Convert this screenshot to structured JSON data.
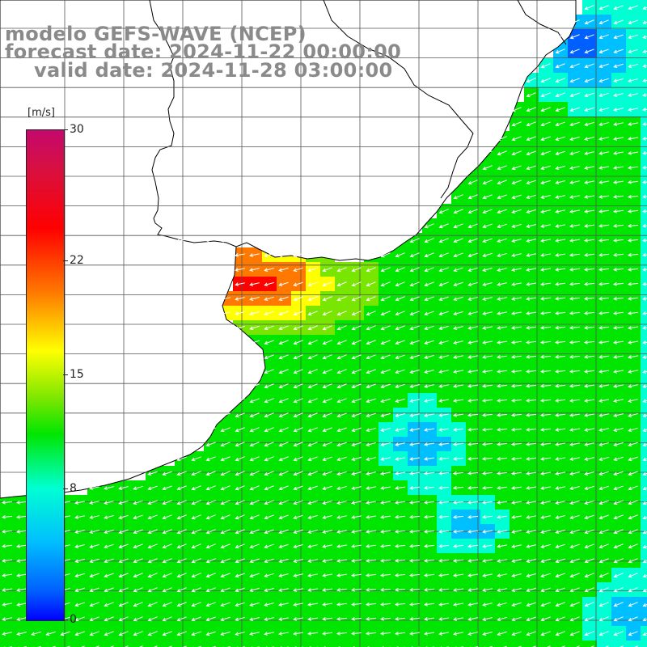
{
  "title": {
    "model": "modelo GEFS-WAVE (NCEP)",
    "forecast": "forecast date: 2024-11-22 00:00:00",
    "valid": "valid date: 2024-11-28 03:00:00"
  },
  "colorbar": {
    "unit": "[m/s]",
    "ticks": [
      {
        "value": 30,
        "label": "30"
      },
      {
        "value": 22,
        "label": "22"
      },
      {
        "value": 15,
        "label": "15"
      },
      {
        "value": 8,
        "label": "8"
      },
      {
        "value": 0,
        "label": "0"
      }
    ],
    "range": [
      0,
      30
    ]
  },
  "map": {
    "variable": "wind speed and direction",
    "land_color": "#ffffff",
    "coastline_color": "#000000",
    "grid_color": "#555555",
    "arrow_color": "#ffffff",
    "palette": [
      "#0000ff",
      "#0060ff",
      "#00bfff",
      "#00ffd2",
      "#00e600",
      "#78e600",
      "#ffff00",
      "#ff7800",
      "#ff0000",
      "#d81040",
      "#c4086e"
    ]
  }
}
